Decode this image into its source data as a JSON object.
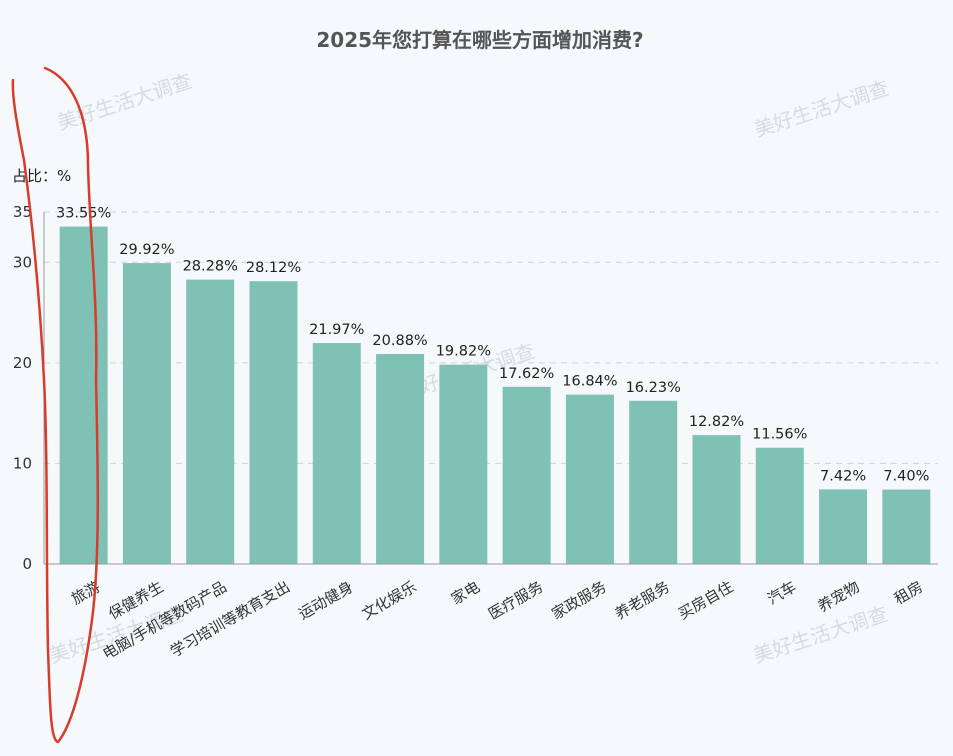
{
  "chart_data": {
    "type": "bar",
    "title": "2025年您打算在哪些方面增加消费?",
    "ylabel": "占比：%",
    "ylim": [
      0,
      35
    ],
    "yticks": [
      0,
      10,
      20,
      30,
      35
    ],
    "grid": true,
    "bar_color": "#80c1b5",
    "annotation_color": "#d93b2b",
    "watermark": "美好生活大调查",
    "categories": [
      "旅游",
      "保健养生",
      "电脑/手机等数码产品",
      "学习培训等教育支出",
      "运动健身",
      "文化娱乐",
      "家电",
      "医疗服务",
      "家政服务",
      "养老服务",
      "买房自住",
      "汽车",
      "养宠物",
      "租房"
    ],
    "values": [
      33.55,
      29.92,
      28.28,
      28.12,
      21.97,
      20.88,
      19.82,
      17.62,
      16.84,
      16.23,
      12.82,
      11.56,
      7.42,
      7.4
    ],
    "value_labels": [
      "33.55%",
      "29.92%",
      "28.28%",
      "28.12%",
      "21.97%",
      "20.88%",
      "19.82%",
      "17.62%",
      "16.84%",
      "16.23%",
      "12.82%",
      "11.56%",
      "7.42%",
      "7.40%"
    ]
  }
}
